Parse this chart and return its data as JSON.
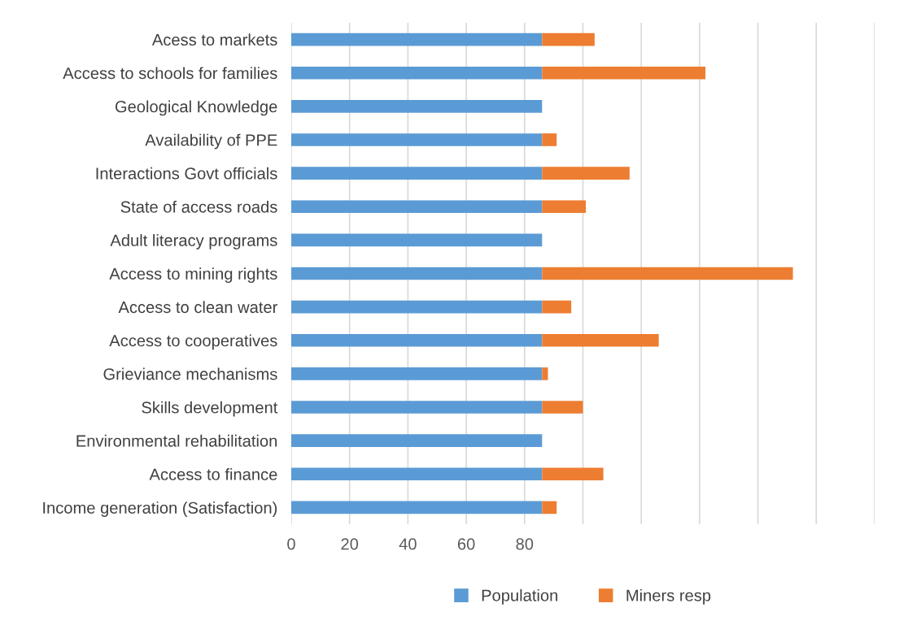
{
  "chart_data": {
    "type": "bar",
    "orientation": "horizontal",
    "stacked": true,
    "categories": [
      "Acess to markets",
      "Access to schools for families",
      "Geological Knowledge",
      "Availability of PPE",
      "Interactions Govt officials",
      "State of access roads",
      "Adult literacy programs",
      "Access to mining rights",
      "Access to clean water",
      "Access to cooperatives",
      "Grieviance mechanisms",
      "Skills development",
      "Environmental rehabilitation",
      "Access to finance",
      "Income generation (Satisfaction)"
    ],
    "series": [
      {
        "name": "Population",
        "color": "#5b9bd5",
        "values": [
          86,
          86,
          86,
          86,
          86,
          86,
          86,
          86,
          86,
          86,
          86,
          86,
          86,
          86,
          86
        ]
      },
      {
        "name": "Miners resp",
        "color": "#ed7d31",
        "values": [
          18,
          56,
          0,
          5,
          30,
          15,
          0,
          86,
          10,
          40,
          2,
          14,
          0,
          21,
          5
        ]
      }
    ],
    "xlim": [
      0,
      200
    ],
    "xticks": [
      0,
      20,
      40,
      60,
      80,
      {
        "value": 100,
        "label": null
      },
      {
        "value": 120,
        "label": null
      },
      {
        "value": 140,
        "label": null
      },
      {
        "value": 160,
        "label": null
      },
      {
        "value": 180,
        "label": null
      },
      {
        "value": 200,
        "label": null
      }
    ],
    "grid": "x",
    "legend": "bottom"
  }
}
